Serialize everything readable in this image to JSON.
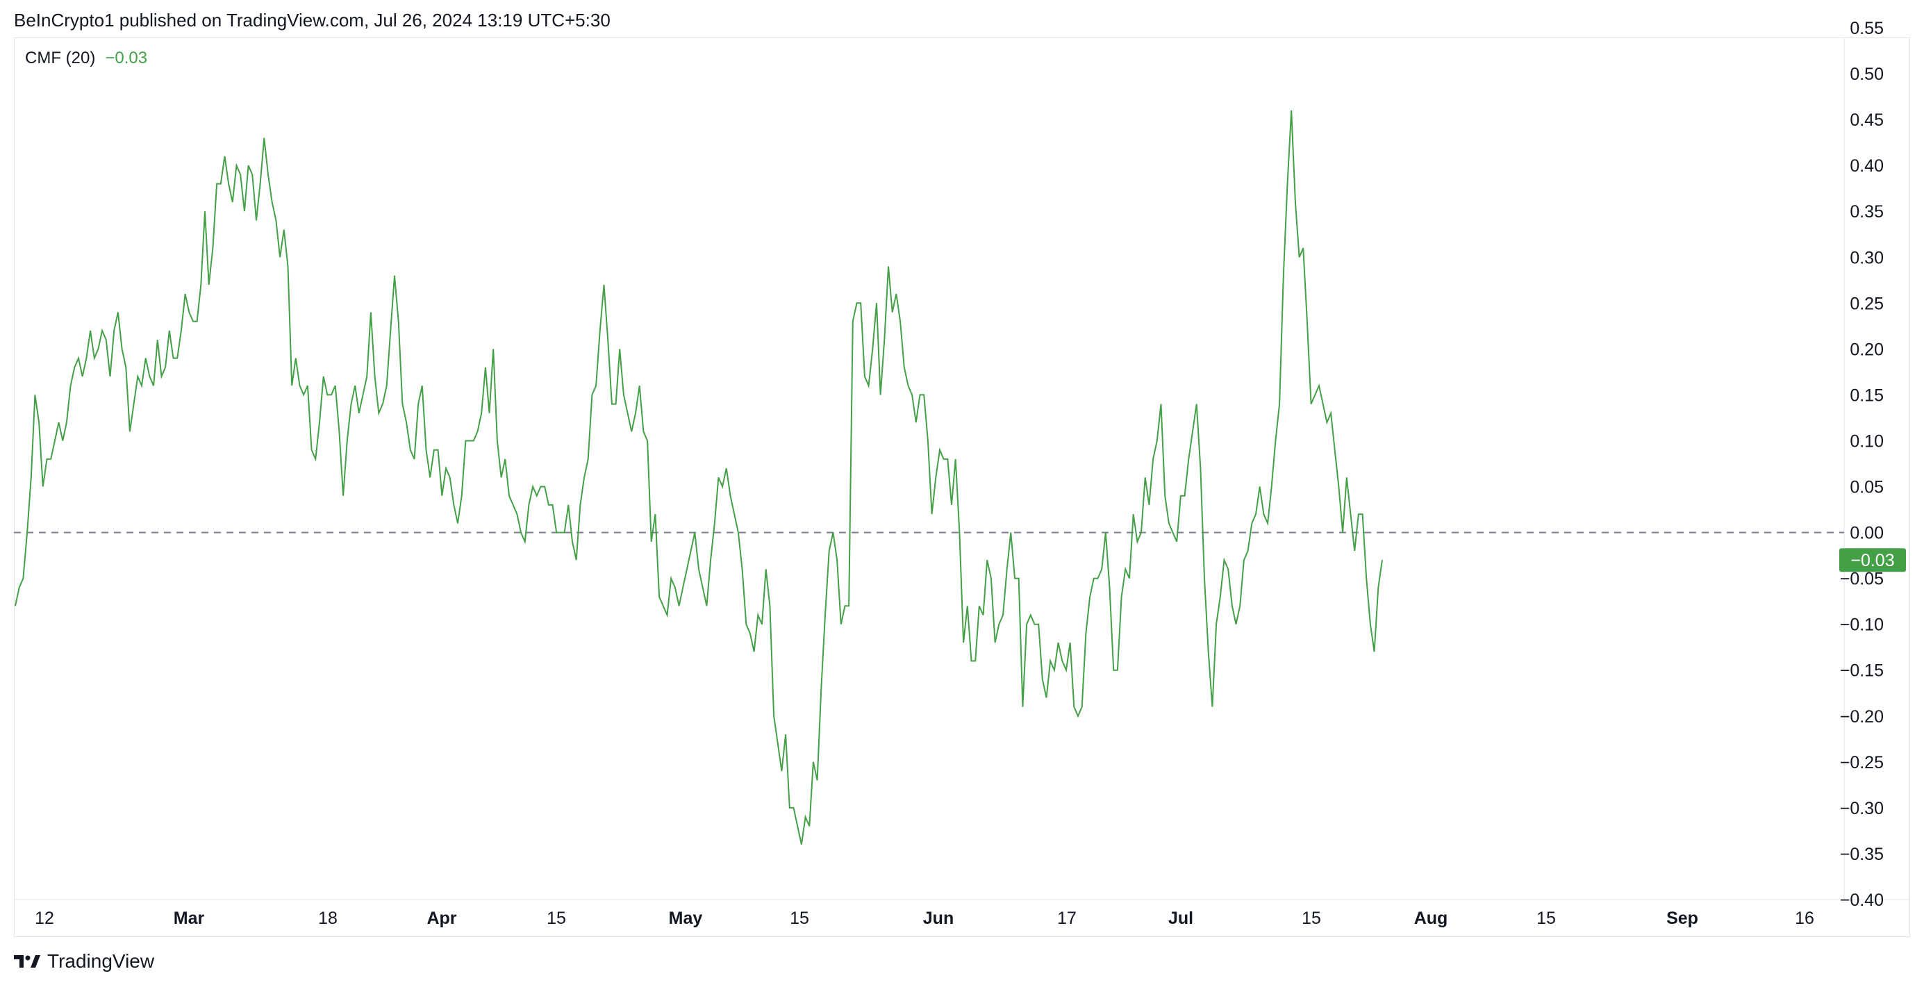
{
  "header": {
    "publish_line": "BeInCrypto1 published on TradingView.com, Jul 26, 2024 13:19 UTC+5:30"
  },
  "legend": {
    "indicator": "CMF (20)",
    "value": "−0.03"
  },
  "footer": {
    "brand": "TradingView"
  },
  "colors": {
    "series": "#43a047",
    "badge_bg": "#43a047",
    "zero_line": "#787b86",
    "text": "#131722"
  },
  "chart_data": {
    "type": "line",
    "title": "CMF (20)",
    "x_axis_labels": [
      "12",
      "Mar",
      "18",
      "Apr",
      "15",
      "May",
      "15",
      "Jun",
      "17",
      "Jul",
      "15",
      "Aug",
      "15",
      "Sep",
      "16"
    ],
    "y_ticks": [
      "0.55",
      "0.50",
      "0.45",
      "0.40",
      "0.35",
      "0.30",
      "0.25",
      "0.20",
      "0.15",
      "0.10",
      "0.05",
      "0.00",
      "−0.05",
      "−0.10",
      "−0.15",
      "−0.20",
      "−0.25",
      "−0.30",
      "−0.35",
      "−0.40"
    ],
    "ylim": [
      -0.4,
      0.55
    ],
    "zero_line": 0.0,
    "last_value_label": "−0.03",
    "series": [
      {
        "values": [
          -0.08,
          -0.06,
          -0.05,
          0.0,
          0.06,
          0.15,
          0.12,
          0.05,
          0.08,
          0.08,
          0.1,
          0.12,
          0.1,
          0.12,
          0.16,
          0.18,
          0.19,
          0.17,
          0.19,
          0.22,
          0.19,
          0.2,
          0.22,
          0.21,
          0.17,
          0.22,
          0.24,
          0.2,
          0.18,
          0.11,
          0.14,
          0.17,
          0.16,
          0.19,
          0.17,
          0.16,
          0.21,
          0.17,
          0.18,
          0.22,
          0.19,
          0.19,
          0.22,
          0.26,
          0.24,
          0.23,
          0.23,
          0.27,
          0.35,
          0.27,
          0.31,
          0.38,
          0.38,
          0.41,
          0.38,
          0.36,
          0.4,
          0.39,
          0.35,
          0.4,
          0.39,
          0.34,
          0.38,
          0.43,
          0.39,
          0.36,
          0.34,
          0.3,
          0.33,
          0.29,
          0.16,
          0.19,
          0.16,
          0.15,
          0.16,
          0.09,
          0.08,
          0.12,
          0.17,
          0.15,
          0.15,
          0.16,
          0.11,
          0.04,
          0.1,
          0.14,
          0.16,
          0.13,
          0.15,
          0.17,
          0.24,
          0.17,
          0.13,
          0.14,
          0.16,
          0.22,
          0.28,
          0.23,
          0.14,
          0.12,
          0.09,
          0.08,
          0.14,
          0.16,
          0.09,
          0.06,
          0.09,
          0.09,
          0.04,
          0.07,
          0.06,
          0.03,
          0.01,
          0.04,
          0.1,
          0.1,
          0.1,
          0.11,
          0.13,
          0.18,
          0.13,
          0.2,
          0.1,
          0.06,
          0.08,
          0.04,
          0.03,
          0.02,
          0.0,
          -0.01,
          0.03,
          0.05,
          0.04,
          0.05,
          0.05,
          0.03,
          0.03,
          0.0,
          0.0,
          0.0,
          0.03,
          -0.01,
          -0.03,
          0.03,
          0.06,
          0.08,
          0.15,
          0.16,
          0.22,
          0.27,
          0.21,
          0.14,
          0.14,
          0.2,
          0.15,
          0.13,
          0.11,
          0.13,
          0.16,
          0.11,
          0.1,
          -0.01,
          0.02,
          -0.07,
          -0.08,
          -0.09,
          -0.05,
          -0.06,
          -0.08,
          -0.06,
          -0.04,
          -0.02,
          0.0,
          -0.04,
          -0.06,
          -0.08,
          -0.03,
          0.01,
          0.06,
          0.05,
          0.07,
          0.04,
          0.02,
          0.0,
          -0.04,
          -0.1,
          -0.11,
          -0.13,
          -0.09,
          -0.1,
          -0.04,
          -0.08,
          -0.2,
          -0.23,
          -0.26,
          -0.22,
          -0.3,
          -0.3,
          -0.32,
          -0.34,
          -0.31,
          -0.32,
          -0.25,
          -0.27,
          -0.17,
          -0.09,
          -0.02,
          0.0,
          -0.03,
          -0.1,
          -0.08,
          -0.08,
          0.23,
          0.25,
          0.25,
          0.17,
          0.16,
          0.2,
          0.25,
          0.15,
          0.21,
          0.29,
          0.24,
          0.26,
          0.23,
          0.18,
          0.16,
          0.15,
          0.12,
          0.15,
          0.15,
          0.1,
          0.02,
          0.06,
          0.09,
          0.08,
          0.08,
          0.03,
          0.08,
          0.0,
          -0.12,
          -0.08,
          -0.14,
          -0.14,
          -0.08,
          -0.09,
          -0.03,
          -0.05,
          -0.12,
          -0.1,
          -0.09,
          -0.04,
          0.0,
          -0.05,
          -0.05,
          -0.19,
          -0.1,
          -0.09,
          -0.1,
          -0.1,
          -0.16,
          -0.18,
          -0.14,
          -0.15,
          -0.12,
          -0.14,
          -0.15,
          -0.12,
          -0.19,
          -0.2,
          -0.19,
          -0.11,
          -0.07,
          -0.05,
          -0.05,
          -0.04,
          0.0,
          -0.06,
          -0.15,
          -0.15,
          -0.07,
          -0.04,
          -0.05,
          0.02,
          -0.01,
          0.0,
          0.06,
          0.03,
          0.08,
          0.1,
          0.14,
          0.04,
          0.01,
          0.0,
          -0.01,
          0.04,
          0.04,
          0.08,
          0.11,
          0.14,
          0.07,
          -0.05,
          -0.13,
          -0.19,
          -0.1,
          -0.07,
          -0.03,
          -0.04,
          -0.08,
          -0.1,
          -0.08,
          -0.03,
          -0.02,
          0.01,
          0.02,
          0.05,
          0.02,
          0.01,
          0.05,
          0.1,
          0.14,
          0.28,
          0.38,
          0.46,
          0.36,
          0.3,
          0.31,
          0.23,
          0.14,
          0.15,
          0.16,
          0.14,
          0.12,
          0.13,
          0.09,
          0.05,
          0.0,
          0.06,
          0.02,
          -0.02,
          0.02,
          0.02,
          -0.05,
          -0.1,
          -0.13,
          -0.06,
          -0.03
        ]
      }
    ]
  }
}
